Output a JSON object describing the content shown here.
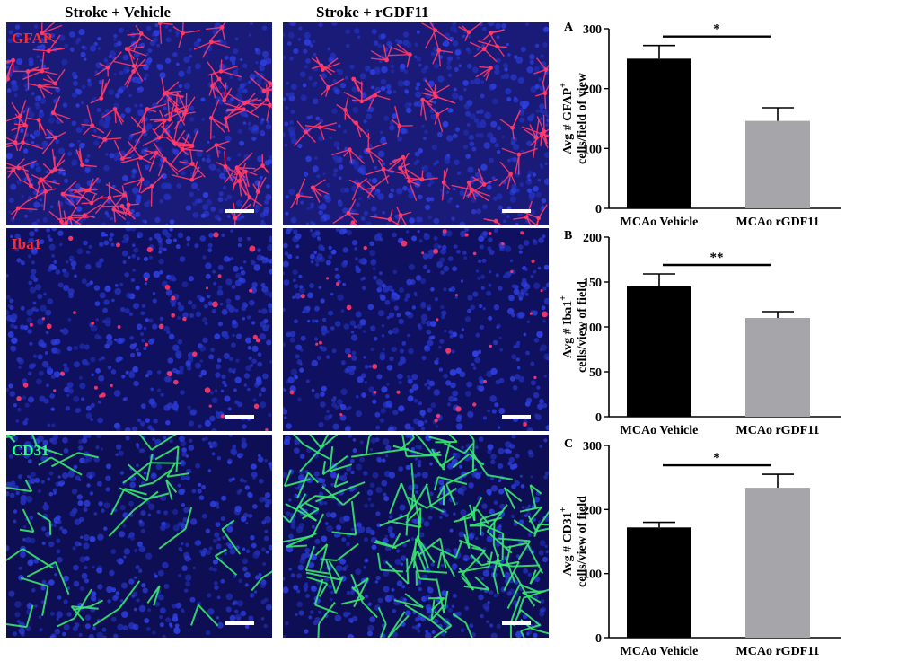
{
  "column_titles": [
    "Stroke + Vehicle",
    "Stroke + rGDF11"
  ],
  "panels": [
    {
      "stain": "GFAP",
      "stain_color": "#ff2a2a",
      "signal_color": "#ff3a6a",
      "background_color": "#1a1a78"
    },
    {
      "stain": "Iba1",
      "stain_color": "#ff2a2a",
      "signal_color": "#ff3a6a",
      "background_color": "#101060"
    },
    {
      "stain": "CD31",
      "stain_color": "#2aff9a",
      "signal_color": "#38e870",
      "background_color": "#0e0e55"
    }
  ],
  "colors": {
    "vehicle_bar": "#000000",
    "rgdf11_bar": "#a6a6aa"
  },
  "chart_data": [
    {
      "type": "bar",
      "panel_letter": "A",
      "categories": [
        "MCAo Vehicle",
        "MCAo rGDF11"
      ],
      "values": [
        250,
        146
      ],
      "errors": [
        22,
        22
      ],
      "ylim": [
        0,
        300
      ],
      "yticks": [
        0,
        100,
        200,
        300
      ],
      "ylabel_line1": "Avg # GFAP",
      "ylabel_sup": "+",
      "ylabel_line2": "cells/field of view",
      "significance": "*"
    },
    {
      "type": "bar",
      "panel_letter": "B",
      "categories": [
        "MCAo Vehicle",
        "MCAo rGDF11"
      ],
      "values": [
        146,
        110
      ],
      "errors": [
        13,
        7
      ],
      "ylim": [
        0,
        200
      ],
      "yticks": [
        0,
        50,
        100,
        150,
        200
      ],
      "ylabel_line1": "Avg # Iba1",
      "ylabel_sup": "+",
      "ylabel_line2": "cells/view of field",
      "significance": "**"
    },
    {
      "type": "bar",
      "panel_letter": "C",
      "categories": [
        "MCAo Vehicle",
        "MCAo rGDF11"
      ],
      "values": [
        172,
        234
      ],
      "errors": [
        8,
        21
      ],
      "ylim": [
        0,
        300
      ],
      "yticks": [
        0,
        100,
        200,
        300
      ],
      "ylabel_line1": "Avg # CD31",
      "ylabel_sup": "+",
      "ylabel_line2": "cells/view of field",
      "significance": "*"
    }
  ]
}
